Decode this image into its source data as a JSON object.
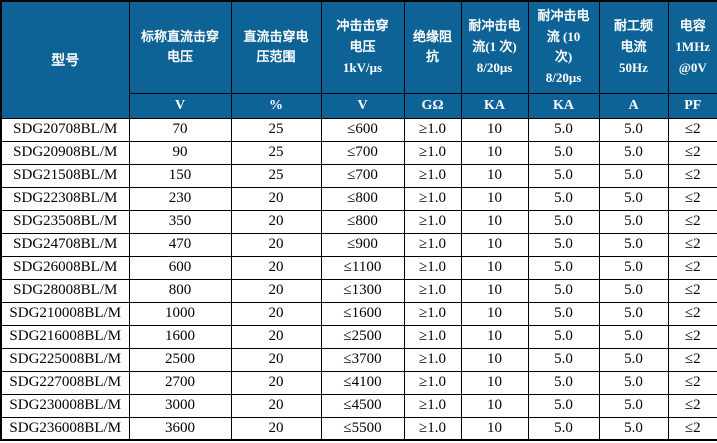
{
  "colors": {
    "header_bg": "#0D6396",
    "header_text": "#FFFFFF",
    "border": "#000000",
    "body_text": "#000000",
    "row_bg": "#FFFFFF"
  },
  "table": {
    "model_header": "型号",
    "columns": [
      {
        "title": "标称直流击穿\n电压",
        "unit": "V"
      },
      {
        "title": "直流击穿电\n压范围",
        "unit": "%"
      },
      {
        "title": "冲击击穿\n电压\n1kV/μs",
        "unit": "V"
      },
      {
        "title": "绝缘阻\n抗",
        "unit": "GΩ"
      },
      {
        "title": "耐冲击电\n流(1 次)\n8/20μs",
        "unit": "KA"
      },
      {
        "title": "耐冲击电\n流 (10\n次)\n8/20μs",
        "unit": "KA"
      },
      {
        "title": "耐工频\n电流\n50Hz",
        "unit": "A"
      },
      {
        "title": "电容\n1MHz\n@0V",
        "unit": "PF"
      }
    ],
    "rows": [
      {
        "model": "SDG20708BL/M",
        "values": [
          "70",
          "25",
          "≤600",
          "≥1.0",
          "10",
          "5.0",
          "5.0",
          "≤2"
        ]
      },
      {
        "model": "SDG20908BL/M",
        "values": [
          "90",
          "25",
          "≤700",
          "≥1.0",
          "10",
          "5.0",
          "5.0",
          "≤2"
        ]
      },
      {
        "model": "SDG21508BL/M",
        "values": [
          "150",
          "25",
          "≤700",
          "≥1.0",
          "10",
          "5.0",
          "5.0",
          "≤2"
        ]
      },
      {
        "model": "SDG22308BL/M",
        "values": [
          "230",
          "20",
          "≤800",
          "≥1.0",
          "10",
          "5.0",
          "5.0",
          "≤2"
        ]
      },
      {
        "model": "SDG23508BL/M",
        "values": [
          "350",
          "20",
          "≤800",
          "≥1.0",
          "10",
          "5.0",
          "5.0",
          "≤2"
        ]
      },
      {
        "model": "SDG24708BL/M",
        "values": [
          "470",
          "20",
          "≤900",
          "≥1.0",
          "10",
          "5.0",
          "5.0",
          "≤2"
        ]
      },
      {
        "model": "SDG26008BL/M",
        "values": [
          "600",
          "20",
          "≤1100",
          "≥1.0",
          "10",
          "5.0",
          "5.0",
          "≤2"
        ]
      },
      {
        "model": "SDG28008BL/M",
        "values": [
          "800",
          "20",
          "≤1300",
          "≥1.0",
          "10",
          "5.0",
          "5.0",
          "≤2"
        ]
      },
      {
        "model": "SDG210008BL/M",
        "values": [
          "1000",
          "20",
          "≤1600",
          "≥1.0",
          "10",
          "5.0",
          "5.0",
          "≤2"
        ]
      },
      {
        "model": "SDG216008BL/M",
        "values": [
          "1600",
          "20",
          "≤2500",
          "≥1.0",
          "10",
          "5.0",
          "5.0",
          "≤2"
        ]
      },
      {
        "model": "SDG225008BL/M",
        "values": [
          "2500",
          "20",
          "≤3700",
          "≥1.0",
          "10",
          "5.0",
          "5.0",
          "≤2"
        ]
      },
      {
        "model": "SDG227008BL/M",
        "values": [
          "2700",
          "20",
          "≤4100",
          "≥1.0",
          "10",
          "5.0",
          "5.0",
          "≤2"
        ]
      },
      {
        "model": "SDG230008BL/M",
        "values": [
          "3000",
          "20",
          "≤4500",
          "≥1.0",
          "10",
          "5.0",
          "5.0",
          "≤2"
        ]
      },
      {
        "model": "SDG236008BL/M",
        "values": [
          "3600",
          "20",
          "≤5500",
          "≥1.0",
          "10",
          "5.0",
          "5.0",
          "≤2"
        ]
      }
    ]
  }
}
